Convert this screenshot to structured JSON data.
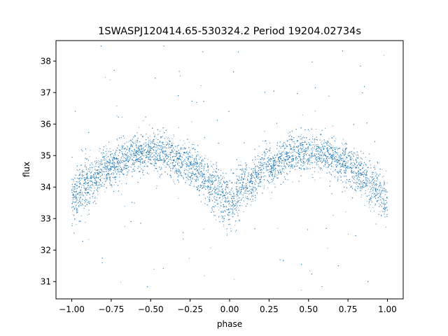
{
  "chart_data": {
    "type": "scatter",
    "title": "1SWASPJ120414.65-530324.2 Period 19204.02734s",
    "xlabel": "phase",
    "ylabel": "flux",
    "xlim": [
      -1.1,
      1.1
    ],
    "ylim": [
      30.45,
      38.65
    ],
    "x_ticks": [
      -1.0,
      -0.75,
      -0.5,
      -0.25,
      0.0,
      0.25,
      0.5,
      0.75,
      1.0
    ],
    "x_tick_labels": [
      "−1.00",
      "−0.75",
      "−0.50",
      "−0.25",
      "0.00",
      "0.25",
      "0.50",
      "0.75",
      "1.00"
    ],
    "y_ticks": [
      31,
      32,
      33,
      34,
      35,
      36,
      37,
      38
    ],
    "y_tick_labels": [
      "31",
      "32",
      "33",
      "34",
      "35",
      "36",
      "37",
      "38"
    ],
    "grid": false,
    "legend": "none",
    "series_color": "#1f77b4",
    "phase_folded_curve": {
      "phase": [
        -1.0,
        -0.9,
        -0.75,
        -0.6,
        -0.5,
        -0.4,
        -0.25,
        -0.1,
        0.0,
        0.1,
        0.25,
        0.4,
        0.5,
        0.6,
        0.75,
        0.9,
        1.0
      ],
      "flux": [
        33.6,
        34.1,
        34.7,
        35.05,
        35.1,
        35.0,
        34.7,
        34.0,
        33.5,
        34.0,
        34.7,
        35.0,
        35.1,
        35.05,
        34.7,
        34.1,
        33.6
      ]
    }
  }
}
